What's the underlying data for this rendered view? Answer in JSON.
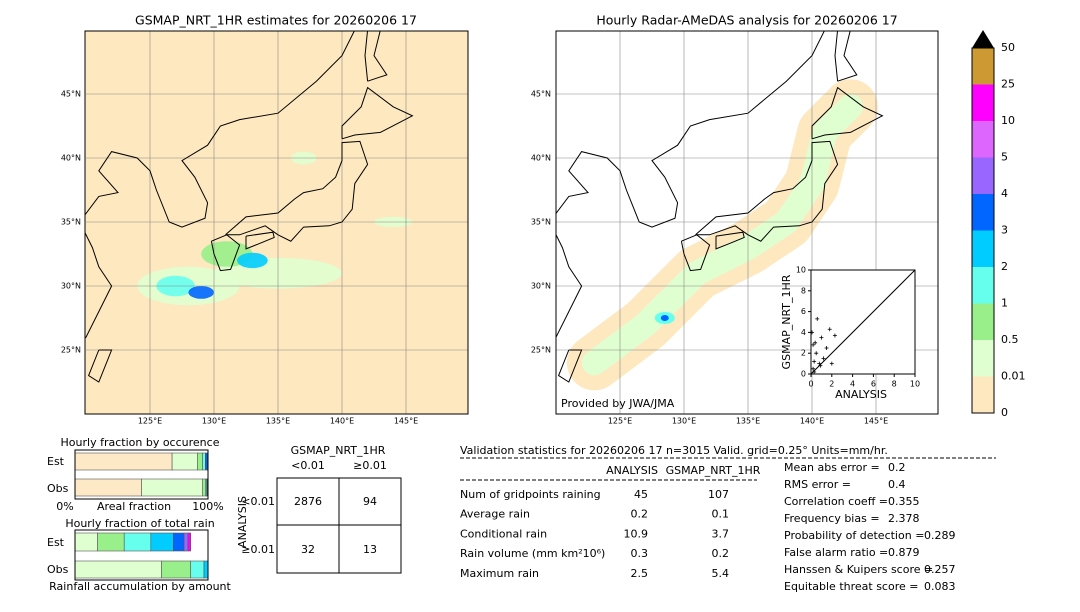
{
  "left_map": {
    "title": "GSMAP_NRT_1HR estimates for 20260206 17",
    "lat_labels": [
      "45°N",
      "40°N",
      "35°N",
      "30°N",
      "25°N"
    ],
    "lon_labels": [
      "125°E",
      "130°E",
      "135°E",
      "140°E",
      "145°E"
    ]
  },
  "right_map": {
    "title": "Hourly Radar-AMeDAS analysis for 20260206 17",
    "lat_labels": [
      "45°N",
      "40°N",
      "35°N",
      "30°N",
      "25°N"
    ],
    "lon_labels": [
      "125°E",
      "130°E",
      "135°E",
      "140°E",
      "145°E"
    ],
    "credit": "Provided by JWA/JMA"
  },
  "colorbar": {
    "labels": [
      0,
      0.01,
      0.5,
      1,
      2,
      3,
      4,
      5,
      10,
      25,
      50
    ],
    "colors": [
      "#fde8c0",
      "#e0ffd0",
      "#99f08a",
      "#66ffee",
      "#00ccff",
      "#0066ff",
      "#9966ff",
      "#dd66ff",
      "#ff00ff",
      "#cc9933"
    ],
    "over_color": "#000000"
  },
  "scatter": {
    "ylabel": "GSMAP_NRT_1HR",
    "xlabel": "ANALYSIS",
    "xticks": [
      0,
      2,
      4,
      6,
      8,
      10
    ],
    "yticks": [
      0,
      2,
      4,
      6,
      8,
      10
    ],
    "x": [
      0.2,
      0.3,
      0.5,
      0.4,
      0.8,
      0.1,
      0.6,
      1.5,
      2.0,
      1.2,
      2.3,
      0.3,
      0.9,
      1.8,
      0.2,
      1.0
    ],
    "y": [
      0.5,
      1.2,
      2.0,
      3.0,
      1.0,
      4.0,
      5.3,
      2.5,
      1.0,
      1.5,
      3.7,
      0.2,
      0.8,
      4.3,
      2.8,
      3.5
    ]
  },
  "occurrence": {
    "title": "Hourly fraction by occurence",
    "rows": [
      "Est",
      "Obs"
    ],
    "axis_left": "0%",
    "axis_label": "Areal fraction",
    "axis_right": "100%",
    "colors": [
      "#fee9c6",
      "#e0ffd0",
      "#99f08a",
      "#66ffee",
      "#0066ff",
      "#000080"
    ],
    "est": [
      0.73,
      0.19,
      0.04,
      0.02,
      0.015,
      0.005
    ],
    "obs": [
      0.5,
      0.46,
      0.02,
      0.01,
      0.005,
      0.005
    ]
  },
  "rain_fraction": {
    "title": "Hourly fraction of total rain",
    "rows": [
      "Est",
      "Obs"
    ],
    "axis_label": "Rainfall accumulation by amount",
    "colors": [
      "#e0ffd0",
      "#99f08a",
      "#66ffee",
      "#00ccff",
      "#0066ff",
      "#9966ff",
      "#ff00ff"
    ],
    "est": [
      0.17,
      0.2,
      0.2,
      0.17,
      0.08,
      0.03,
      0.02
    ],
    "obs": [
      0.65,
      0.22,
      0.1,
      0.03,
      0,
      0,
      0
    ]
  },
  "contingency": {
    "title": "GSMAP_NRT_1HR",
    "col_headers": [
      "<0.01",
      "≥0.01"
    ],
    "row_title": "ANALYSIS",
    "row_headers": [
      "<0.01",
      "≥0.01"
    ],
    "cells": [
      [
        2876,
        94
      ],
      [
        32,
        13
      ]
    ]
  },
  "validation": {
    "header": "Validation statistics for 20260206 17  n=3015 Valid. grid=0.25° Units=mm/hr.",
    "columns": [
      "ANALYSIS",
      "GSMAP_NRT_1HR"
    ],
    "rows": [
      [
        "Num of gridpoints raining",
        45,
        107
      ],
      [
        "Average rain",
        0.2,
        0.1
      ],
      [
        "Conditional rain",
        10.9,
        3.7
      ],
      [
        "Rain volume (mm km²10⁶)",
        0.3,
        0.2
      ],
      [
        "Maximum rain",
        2.5,
        5.4
      ]
    ],
    "scores": [
      [
        "Mean abs error =",
        0.2
      ],
      [
        "RMS error =",
        0.4
      ],
      [
        "Correlation coeff =",
        0.355
      ],
      [
        "Frequency bias =",
        2.378
      ],
      [
        "Probability of detection =",
        0.289
      ],
      [
        "False alarm ratio =",
        0.879
      ],
      [
        "Hanssen & Kuipers score =",
        0.257
      ],
      [
        "Equitable threat score =",
        0.083
      ]
    ]
  }
}
